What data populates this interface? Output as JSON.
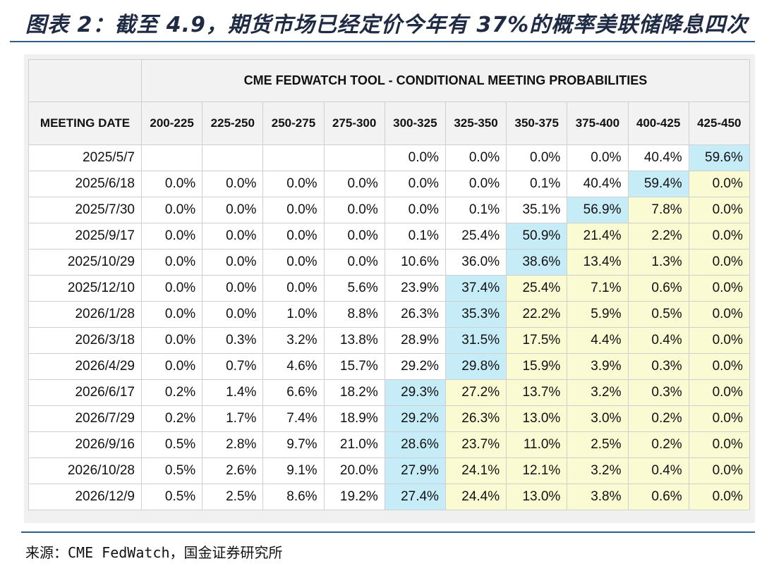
{
  "title": "图表 2：截至 4.9，期货市场已经定价今年有 37%的概率美联储降息四次",
  "table": {
    "tool_title": "CME FEDWATCH TOOL - CONDITIONAL MEETING PROBABILITIES",
    "date_header": "MEETING DATE",
    "columns": [
      "200-225",
      "225-250",
      "250-275",
      "275-300",
      "300-325",
      "325-350",
      "350-375",
      "375-400",
      "400-425",
      "425-450"
    ],
    "rows": [
      {
        "date": "2025/5/7",
        "values": [
          "",
          "",
          "",
          "",
          "0.0%",
          "0.0%",
          "0.0%",
          "0.0%",
          "40.4%",
          "59.6%"
        ],
        "highlight": [
          "n",
          "n",
          "n",
          "n",
          "n",
          "n",
          "n",
          "n",
          "n",
          "b"
        ]
      },
      {
        "date": "2025/6/18",
        "values": [
          "0.0%",
          "0.0%",
          "0.0%",
          "0.0%",
          "0.0%",
          "0.0%",
          "0.1%",
          "40.4%",
          "59.4%",
          "0.0%"
        ],
        "highlight": [
          "n",
          "n",
          "n",
          "n",
          "n",
          "n",
          "n",
          "n",
          "b",
          "y"
        ]
      },
      {
        "date": "2025/7/30",
        "values": [
          "0.0%",
          "0.0%",
          "0.0%",
          "0.0%",
          "0.0%",
          "0.1%",
          "35.1%",
          "56.9%",
          "7.8%",
          "0.0%"
        ],
        "highlight": [
          "n",
          "n",
          "n",
          "n",
          "n",
          "n",
          "n",
          "b",
          "y",
          "y"
        ]
      },
      {
        "date": "2025/9/17",
        "values": [
          "0.0%",
          "0.0%",
          "0.0%",
          "0.0%",
          "0.1%",
          "25.4%",
          "50.9%",
          "21.4%",
          "2.2%",
          "0.0%"
        ],
        "highlight": [
          "n",
          "n",
          "n",
          "n",
          "n",
          "n",
          "b",
          "y",
          "y",
          "y"
        ]
      },
      {
        "date": "2025/10/29",
        "values": [
          "0.0%",
          "0.0%",
          "0.0%",
          "0.0%",
          "10.6%",
          "36.0%",
          "38.6%",
          "13.4%",
          "1.3%",
          "0.0%"
        ],
        "highlight": [
          "n",
          "n",
          "n",
          "n",
          "n",
          "n",
          "b",
          "y",
          "y",
          "y"
        ]
      },
      {
        "date": "2025/12/10",
        "values": [
          "0.0%",
          "0.0%",
          "0.0%",
          "5.6%",
          "23.9%",
          "37.4%",
          "25.4%",
          "7.1%",
          "0.6%",
          "0.0%"
        ],
        "highlight": [
          "n",
          "n",
          "n",
          "n",
          "n",
          "b",
          "y",
          "y",
          "y",
          "y"
        ]
      },
      {
        "date": "2026/1/28",
        "values": [
          "0.0%",
          "0.0%",
          "1.0%",
          "8.8%",
          "26.3%",
          "35.3%",
          "22.2%",
          "5.9%",
          "0.5%",
          "0.0%"
        ],
        "highlight": [
          "n",
          "n",
          "n",
          "n",
          "n",
          "b",
          "y",
          "y",
          "y",
          "y"
        ]
      },
      {
        "date": "2026/3/18",
        "values": [
          "0.0%",
          "0.3%",
          "3.2%",
          "13.8%",
          "28.9%",
          "31.5%",
          "17.5%",
          "4.4%",
          "0.4%",
          "0.0%"
        ],
        "highlight": [
          "n",
          "n",
          "n",
          "n",
          "n",
          "b",
          "y",
          "y",
          "y",
          "y"
        ]
      },
      {
        "date": "2026/4/29",
        "values": [
          "0.0%",
          "0.7%",
          "4.6%",
          "15.7%",
          "29.2%",
          "29.8%",
          "15.9%",
          "3.9%",
          "0.3%",
          "0.0%"
        ],
        "highlight": [
          "n",
          "n",
          "n",
          "n",
          "n",
          "b",
          "y",
          "y",
          "y",
          "y"
        ]
      },
      {
        "date": "2026/6/17",
        "values": [
          "0.2%",
          "1.4%",
          "6.6%",
          "18.2%",
          "29.3%",
          "27.2%",
          "13.7%",
          "3.2%",
          "0.3%",
          "0.0%"
        ],
        "highlight": [
          "n",
          "n",
          "n",
          "n",
          "b",
          "y",
          "y",
          "y",
          "y",
          "y"
        ]
      },
      {
        "date": "2026/7/29",
        "values": [
          "0.2%",
          "1.7%",
          "7.4%",
          "18.9%",
          "29.2%",
          "26.3%",
          "13.0%",
          "3.0%",
          "0.2%",
          "0.0%"
        ],
        "highlight": [
          "n",
          "n",
          "n",
          "n",
          "b",
          "y",
          "y",
          "y",
          "y",
          "y"
        ]
      },
      {
        "date": "2026/9/16",
        "values": [
          "0.5%",
          "2.8%",
          "9.7%",
          "21.0%",
          "28.6%",
          "23.7%",
          "11.0%",
          "2.5%",
          "0.2%",
          "0.0%"
        ],
        "highlight": [
          "n",
          "n",
          "n",
          "n",
          "b",
          "y",
          "y",
          "y",
          "y",
          "y"
        ]
      },
      {
        "date": "2026/10/28",
        "values": [
          "0.5%",
          "2.6%",
          "9.1%",
          "20.0%",
          "27.9%",
          "24.1%",
          "12.1%",
          "3.2%",
          "0.4%",
          "0.0%"
        ],
        "highlight": [
          "n",
          "n",
          "n",
          "n",
          "b",
          "y",
          "y",
          "y",
          "y",
          "y"
        ]
      },
      {
        "date": "2026/12/9",
        "values": [
          "0.5%",
          "2.5%",
          "8.6%",
          "19.2%",
          "27.4%",
          "24.4%",
          "13.0%",
          "3.8%",
          "0.6%",
          "0.0%"
        ],
        "highlight": [
          "n",
          "n",
          "n",
          "n",
          "b",
          "y",
          "y",
          "y",
          "y",
          "y"
        ]
      }
    ]
  },
  "colors": {
    "highlight_blue": "#c6ecf7",
    "highlight_yellow": "#fafad3",
    "rule": "#2b5d8a"
  },
  "source": "来源：CME FedWatch，国金证券研究所"
}
